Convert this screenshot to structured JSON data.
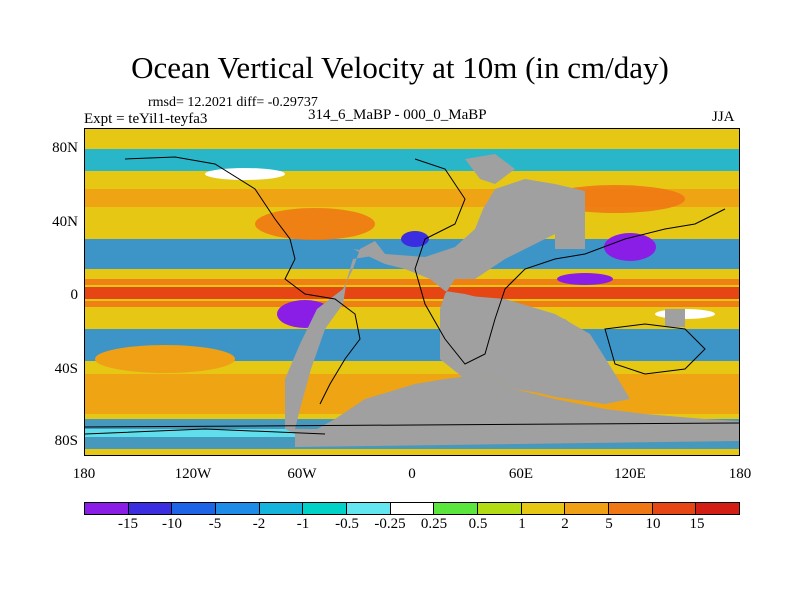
{
  "title": "Ocean Vertical Velocity at 10m (in cm/day)",
  "stats": "rmsd= 12.2021 diff= -0.29737",
  "experiment": "Expt = teYil1-teyfa3",
  "periods": "314_6_MaBP - 000_0_MaBP",
  "season": "JJA",
  "lat_labels": [
    "80N",
    "40N",
    "0",
    "40S",
    "80S"
  ],
  "lon_labels": [
    "180",
    "120W",
    "60W",
    "0",
    "60E",
    "120E",
    "180"
  ],
  "colorbar": {
    "labels": [
      "-15",
      "-10",
      "-5",
      "-2",
      "-1",
      "-0.5",
      "-0.25",
      "0.25",
      "0.5",
      "1",
      "2",
      "5",
      "10",
      "15"
    ],
    "colors": [
      "#8b1ee6",
      "#3b2ee0",
      "#1e64e6",
      "#1e8ce6",
      "#14b4dc",
      "#00d2c8",
      "#64e6f0",
      "#ffffff",
      "#5ae63c",
      "#b4dc14",
      "#e6c814",
      "#f0a014",
      "#f07814",
      "#e64614",
      "#d21e14"
    ]
  },
  "land_color": "#a0a0a0",
  "fields": {
    "equatorial_upwelling": "#e64614",
    "subtropical_downwelling": "#1e8ce6",
    "coastal_upwelling": "#f0a014",
    "strong_downwelling": "#8b1ee6"
  }
}
